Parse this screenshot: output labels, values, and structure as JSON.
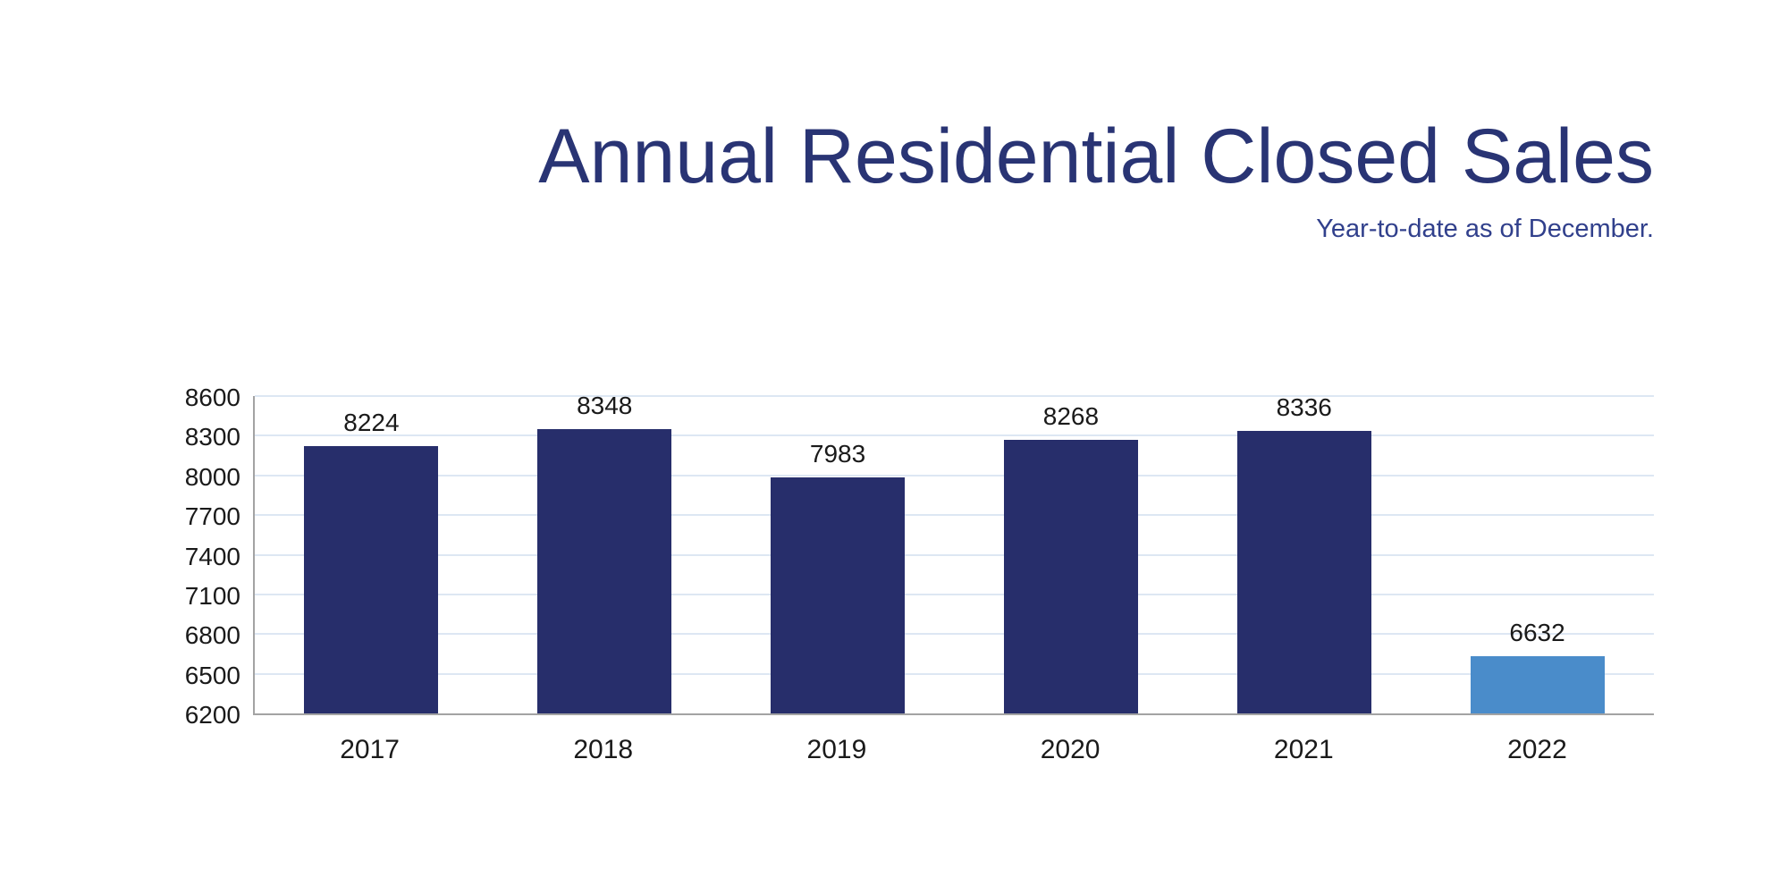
{
  "header": {
    "title": "Annual Residential Closed Sales",
    "subtitle": "Year-to-date as of December."
  },
  "chart_data": {
    "type": "bar",
    "title": "Annual Residential Closed Sales",
    "subtitle": "Year-to-date as of December.",
    "categories": [
      "2017",
      "2018",
      "2019",
      "2020",
      "2021",
      "2022"
    ],
    "values": [
      8224,
      8348,
      7983,
      8268,
      8336,
      6632
    ],
    "data_labels": [
      "8224",
      "8348",
      "7983",
      "8268",
      "8336",
      "6632"
    ],
    "bar_colors": [
      "#272e6b",
      "#272e6b",
      "#272e6b",
      "#272e6b",
      "#272e6b",
      "#4a8cca"
    ],
    "xlabel": "",
    "ylabel": "",
    "ylim": [
      6200,
      8600
    ],
    "yticks": [
      6200,
      6500,
      6800,
      7100,
      7400,
      7700,
      8000,
      8300,
      8600
    ],
    "grid": true,
    "legend": false,
    "legend_position": "none"
  },
  "colors": {
    "title_text": "#293474",
    "subtitle_text": "#31408c",
    "bar_primary": "#272e6b",
    "bar_highlight": "#4a8cca",
    "gridline": "#dde7f3",
    "axis_line": "#a3a3a3",
    "tick_text": "#1a1a1a",
    "background": "#ffffff"
  }
}
